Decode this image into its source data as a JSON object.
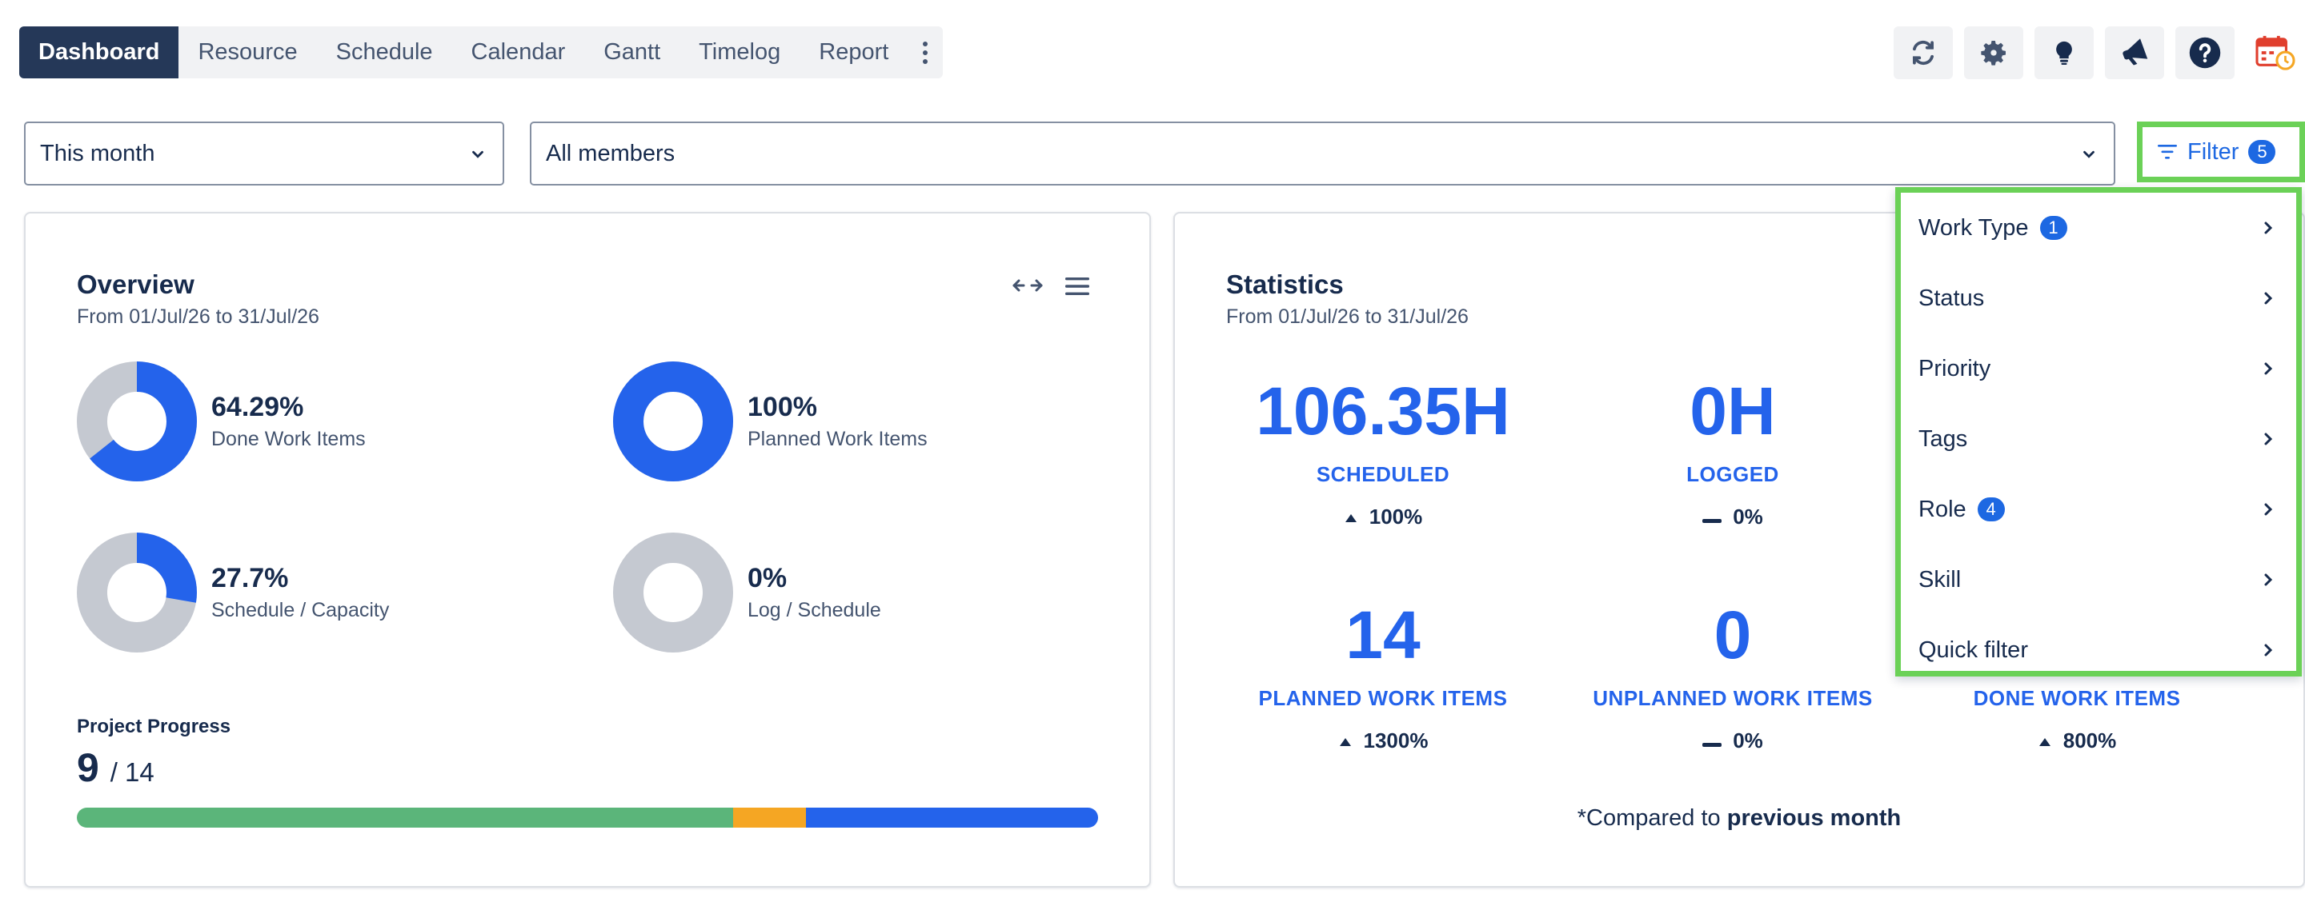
{
  "nav": {
    "tabs": [
      {
        "label": "Dashboard",
        "active": true
      },
      {
        "label": "Resource"
      },
      {
        "label": "Schedule"
      },
      {
        "label": "Calendar"
      },
      {
        "label": "Gantt"
      },
      {
        "label": "Timelog"
      },
      {
        "label": "Report"
      }
    ]
  },
  "toolbar": {
    "icons": [
      "refresh-icon",
      "gear-icon",
      "lightbulb-icon",
      "megaphone-icon",
      "help-icon",
      "calendar-app-icon"
    ]
  },
  "filters": {
    "period": "This month",
    "members": "All members",
    "filter_label": "Filter",
    "filter_count": "5"
  },
  "overview": {
    "title": "Overview",
    "subtitle": "From 01/Jul/26 to 31/Jul/26",
    "donuts": [
      {
        "pct": "64.29%",
        "label": "Done Work Items",
        "fraction": 0.6429
      },
      {
        "pct": "100%",
        "label": "Planned Work Items",
        "fraction": 1.0
      },
      {
        "pct": "27.7%",
        "label": "Schedule / Capacity",
        "fraction": 0.277
      },
      {
        "pct": "0%",
        "label": "Log / Schedule",
        "fraction": 0.0
      }
    ],
    "progress": {
      "label": "Project Progress",
      "done": "9",
      "total": "/ 14",
      "segments": [
        {
          "status": "done",
          "fraction": 0.643,
          "color": "#5bb57a"
        },
        {
          "status": "in-progress",
          "fraction": 0.071,
          "color": "#f5a623"
        },
        {
          "status": "todo",
          "fraction": 0.286,
          "color": "#2463eb"
        }
      ]
    }
  },
  "statistics": {
    "title": "Statistics",
    "subtitle": "From 01/Jul/26 to 31/Jul/26",
    "items": [
      {
        "value": "106.35H",
        "name": "SCHEDULED",
        "change": "100%",
        "trend": "up"
      },
      {
        "value": "0H",
        "name": "LOGGED",
        "change": "0%",
        "trend": "flat"
      },
      {
        "value": "14",
        "name": "PLANNED WORK ITEMS",
        "change": "1300%",
        "trend": "up"
      },
      {
        "value": "0",
        "name": "UNPLANNED WORK ITEMS",
        "change": "0%",
        "trend": "flat"
      },
      {
        "value": "",
        "name": "DONE WORK ITEMS",
        "change": "800%",
        "trend": "up"
      }
    ],
    "compare_prefix": "*Compared to",
    "compare_bold": "previous month"
  },
  "filter_menu": {
    "items": [
      {
        "label": "Work Type",
        "badge": "1"
      },
      {
        "label": "Status",
        "badge": ""
      },
      {
        "label": "Priority",
        "badge": ""
      },
      {
        "label": "Tags",
        "badge": ""
      },
      {
        "label": "Role",
        "badge": "4"
      },
      {
        "label": "Skill",
        "badge": ""
      },
      {
        "label": "Quick filter",
        "badge": ""
      }
    ]
  },
  "colors": {
    "accent": "#2463eb",
    "ring_bg": "#c5c9d1",
    "highlight": "#6bd157",
    "nav_active": "#253858"
  }
}
